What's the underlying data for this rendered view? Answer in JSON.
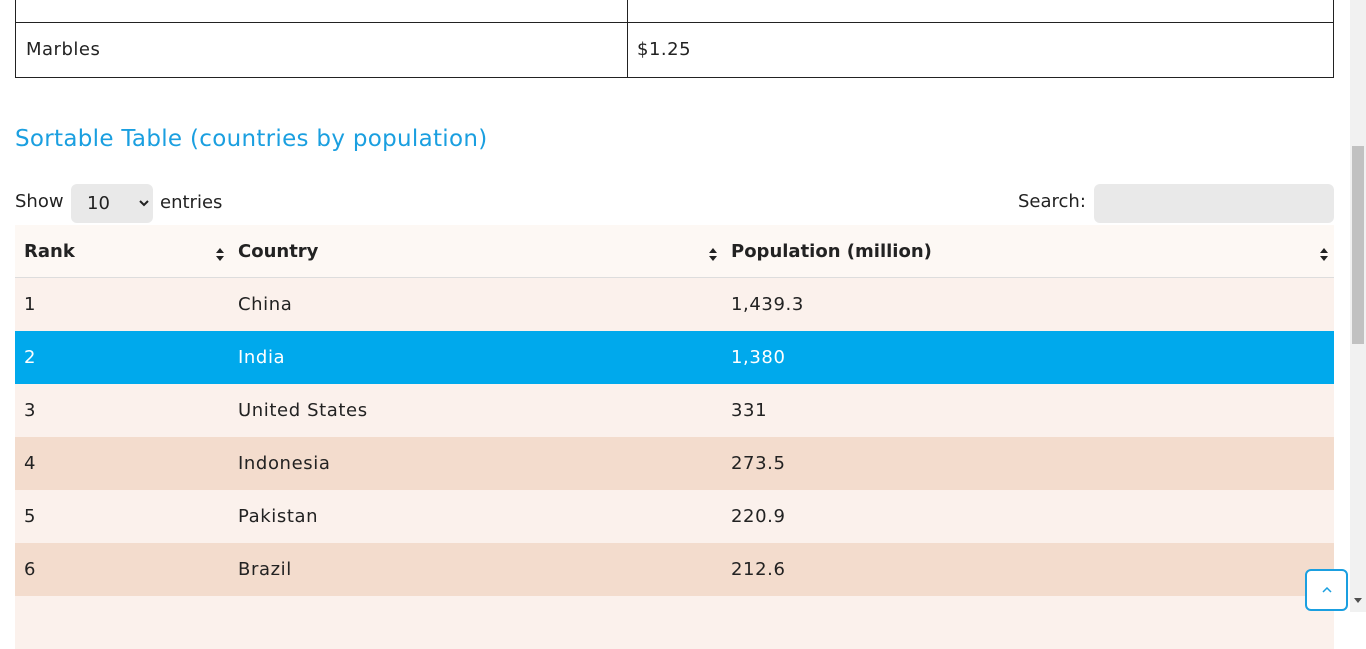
{
  "price_table": {
    "rows": [
      [
        "Marbles",
        "$1.25"
      ]
    ]
  },
  "section": {
    "title": "Sortable Table (countries by population)"
  },
  "controls": {
    "show_label": "Show",
    "entries_value": "10",
    "entries_label": "entries",
    "search_label": "Search:"
  },
  "table": {
    "headers": [
      "Rank",
      "Country",
      "Population (million)"
    ],
    "rows": [
      [
        "1",
        "China",
        "1,439.3"
      ],
      [
        "2",
        "India",
        "1,380"
      ],
      [
        "3",
        "United States",
        "331"
      ],
      [
        "4",
        "Indonesia",
        "273.5"
      ],
      [
        "5",
        "Pakistan",
        "220.9"
      ],
      [
        "6",
        "Brazil",
        "212.6"
      ]
    ]
  }
}
